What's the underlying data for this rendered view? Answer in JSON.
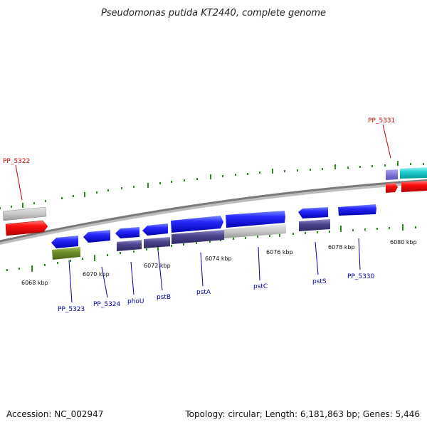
{
  "title": "Pseudomonas putida KT2440, complete genome",
  "footer": {
    "accession": "Accession: NC_002947",
    "topology": "Topology: circular; Length: 6,181,863 bp; Genes: 5,446"
  },
  "colors": {
    "backbone": "#8a8a8a",
    "tick": "#2e8b1e",
    "label_red": "#cc0000",
    "label_blue": "#0000aa",
    "leader": "#0000aa"
  },
  "scale_labels": [
    "6068 kbp",
    "6070 kbp",
    "6072 kbp",
    "6074 kbp",
    "6076 kbp",
    "6078 kbp",
    "6080 kbp"
  ],
  "gene_labels": [
    "PP_5322",
    "PP_5331",
    "PP_5323",
    "PP_5324",
    "phoU",
    "pstB",
    "pstA",
    "pstC",
    "pstS",
    "PP_5330"
  ]
}
